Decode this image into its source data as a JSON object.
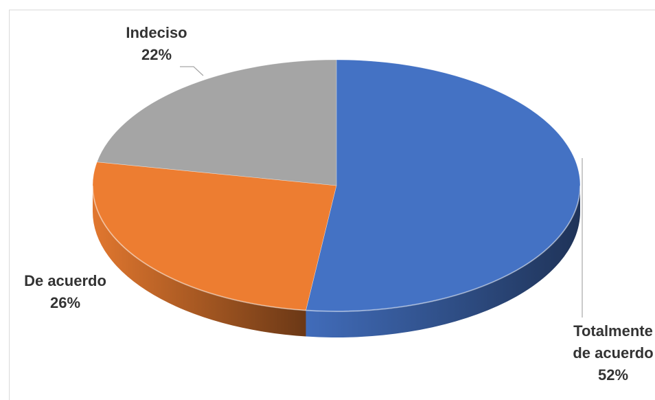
{
  "chart_data": {
    "type": "pie",
    "style": "3d",
    "categories": [
      "Totalmente de acuerdo",
      "De acuerdo",
      "Indeciso"
    ],
    "values": [
      52,
      26,
      22
    ],
    "unit": "%",
    "colors": [
      "#4472C4",
      "#ED7D31",
      "#A5A5A5"
    ],
    "slices": [
      {
        "name": "Totalmente de acuerdo",
        "value": 52,
        "color": "#4472C4",
        "label_lines": [
          "Totalmente",
          "de acuerdo"
        ],
        "percent_label": "52%"
      },
      {
        "name": "De acuerdo",
        "value": 26,
        "color": "#ED7D31",
        "label_lines": [
          "De acuerdo"
        ],
        "percent_label": "26%"
      },
      {
        "name": "Indeciso",
        "value": 22,
        "color": "#A5A5A5",
        "label_lines": [
          "Indeciso"
        ],
        "percent_label": "22%"
      }
    ],
    "legend": "none",
    "title": ""
  }
}
